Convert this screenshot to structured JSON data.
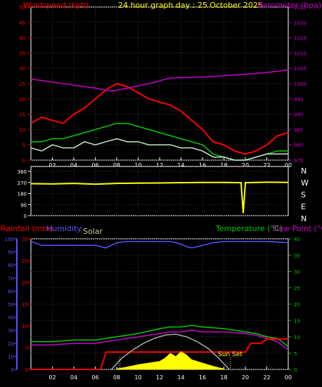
{
  "chart_data": [
    {
      "type": "line",
      "title": "24 hour graph day : 25 October 2025",
      "left_axis_label": "Windspeed (kph)",
      "right_axis_label": "Barometer (hpa)",
      "x_ticks": [
        "02",
        "04",
        "06",
        "08",
        "10",
        "12",
        "14",
        "16",
        "18",
        "20",
        "22",
        "00"
      ],
      "left_ticks": [
        "0",
        "5",
        "10",
        "15",
        "20",
        "25",
        "30",
        "35",
        "40",
        "45",
        "50"
      ],
      "right_ticks": [
        "975",
        "980",
        "985",
        "990",
        "995",
        "1000",
        "1005",
        "1010",
        "1015",
        "1020",
        "1025"
      ],
      "ylim_left": [
        0,
        50
      ],
      "ylim_right": [
        975,
        1025
      ],
      "series": [
        {
          "color": "#ff0000",
          "x": [
            0,
            1,
            2,
            3,
            4,
            5,
            6,
            7,
            8,
            9,
            10,
            11,
            12,
            13,
            14,
            15,
            16,
            17,
            18,
            19,
            20,
            21,
            22,
            23,
            24
          ],
          "values": [
            12,
            14,
            13,
            12,
            15,
            17,
            20,
            23,
            25,
            24,
            22,
            20,
            19,
            18,
            16,
            13,
            10,
            6,
            5,
            3,
            2,
            3,
            5,
            8,
            9
          ]
        },
        {
          "color": "#00cc00",
          "x": [
            0,
            1,
            2,
            3,
            4,
            5,
            6,
            7,
            8,
            9,
            10,
            11,
            12,
            13,
            14,
            15,
            16,
            17,
            18,
            19,
            20,
            21,
            22,
            23,
            24
          ],
          "values": [
            6,
            6,
            7,
            7,
            8,
            9,
            10,
            11,
            12,
            12,
            11,
            10,
            9,
            8,
            7,
            6,
            5,
            2,
            1,
            0,
            0,
            1,
            2,
            3,
            3
          ]
        },
        {
          "color": "#cce8cc",
          "x": [
            0,
            1,
            2,
            3,
            4,
            5,
            6,
            7,
            8,
            9,
            10,
            11,
            12,
            13,
            14,
            15,
            16,
            17,
            18,
            19,
            20,
            21,
            22,
            23,
            24
          ],
          "values": [
            4,
            3,
            5,
            4,
            4,
            6,
            5,
            6,
            7,
            6,
            6,
            5,
            5,
            5,
            4,
            4,
            3,
            1,
            1,
            0,
            0,
            1,
            2,
            2,
            2
          ]
        },
        {
          "color": "#cc00cc",
          "axis": "right",
          "x": [
            0,
            2,
            4,
            6,
            7.5,
            9,
            11,
            13,
            15,
            17,
            19,
            21,
            23,
            24
          ],
          "values": [
            1001.5,
            1000.5,
            999.5,
            998.5,
            997.5,
            998.5,
            1000,
            1001.8,
            1002,
            1002.3,
            1002.8,
            1003.3,
            1004,
            1004.5
          ]
        }
      ]
    },
    {
      "type": "line",
      "left_ticks": [
        "0",
        "90",
        "180",
        "270",
        "360"
      ],
      "right_labels": [
        "N",
        "W",
        "S",
        "E",
        "N"
      ],
      "ylim_left": [
        0,
        360
      ],
      "x_ticks": [
        "02",
        "04",
        "06",
        "08",
        "10",
        "12",
        "14",
        "16",
        "18",
        "20",
        "22",
        "00"
      ],
      "series": [
        {
          "color": "#ffff00",
          "x": [
            0,
            2,
            4,
            6,
            8,
            10,
            12,
            14,
            16,
            18,
            19.6,
            19.8,
            20,
            22,
            24
          ],
          "values": [
            260,
            258,
            262,
            256,
            262,
            264,
            266,
            268,
            270,
            270,
            268,
            20,
            268,
            272,
            270
          ]
        }
      ]
    },
    {
      "type": "line",
      "labels": {
        "rainfall": "Rainfall (mm)",
        "humidity": "Humidity",
        "solar": "Solar",
        "temperature": "Temperature (°C)",
        "dewpoint": "Dew Point (°C)",
        "sunset": "Sun Set"
      },
      "humidity_ticks": [
        "0",
        "10",
        "20",
        "30",
        "40",
        "50",
        "60",
        "70",
        "80",
        "90",
        "100"
      ],
      "rain_ticks": [
        "0",
        "5",
        "10",
        "15",
        "20",
        "25",
        "30"
      ],
      "temp_ticks": [
        "0",
        "5",
        "10",
        "15",
        "20",
        "25",
        "30",
        "35",
        "40"
      ],
      "ylim_humidity": [
        0,
        100
      ],
      "ylim_rain": [
        0,
        30
      ],
      "ylim_temp": [
        0,
        40
      ],
      "x_ticks": [
        "02",
        "04",
        "06",
        "08",
        "10",
        "12",
        "14",
        "16",
        "18",
        "20",
        "22",
        "00"
      ],
      "series": [
        {
          "color": "#5555ff",
          "axis": "humidity",
          "x": [
            0,
            1,
            2,
            4,
            6,
            7,
            8,
            9,
            10,
            12,
            13,
            14,
            14.5,
            15,
            16,
            17,
            18,
            20,
            22,
            24
          ],
          "values": [
            98,
            95,
            95,
            95,
            95,
            93,
            97,
            98,
            98,
            98,
            98,
            96,
            94,
            93,
            95,
            97,
            98,
            98,
            98,
            97
          ]
        },
        {
          "color": "#00cc00",
          "axis": "temp",
          "x": [
            0,
            2,
            4,
            6,
            8,
            10,
            12,
            13,
            14,
            15,
            16,
            18,
            20,
            21,
            22,
            23,
            24
          ],
          "values": [
            8.5,
            8.5,
            9,
            9,
            10,
            11,
            12.5,
            13,
            13,
            13.5,
            13,
            12.5,
            11.5,
            11,
            10,
            9.5,
            7
          ]
        },
        {
          "color": "#cc00cc",
          "axis": "temp",
          "x": [
            0,
            2,
            4,
            6,
            8,
            10,
            12,
            13,
            14,
            15,
            16,
            18,
            20,
            21,
            22,
            23,
            24
          ],
          "values": [
            7.5,
            7.5,
            8,
            8,
            9,
            10,
            11,
            11.5,
            11.5,
            12,
            11.5,
            11.5,
            11,
            10.5,
            9.5,
            8.5,
            6
          ]
        },
        {
          "color": "#ff0000",
          "axis": "rain",
          "x": [
            0,
            6.5,
            7,
            14,
            15,
            16,
            17,
            18,
            19,
            20,
            20.5,
            21,
            21.5,
            22,
            22.5,
            23,
            24
          ],
          "values": [
            0,
            0,
            4,
            4,
            4,
            4,
            4,
            4,
            4,
            4,
            6,
            6,
            6,
            7,
            7,
            7,
            7
          ]
        },
        {
          "color": "#aaaaaa",
          "axis": "temp",
          "x": [
            7.5,
            8.5,
            9.5,
            10.5,
            11.5,
            12.5,
            13.5,
            14.5,
            15.5,
            16.5,
            17.5,
            18.5
          ],
          "values": [
            0,
            3.5,
            6,
            8,
            9.5,
            10.5,
            10.8,
            10,
            8.5,
            6.5,
            3.5,
            0
          ]
        },
        {
          "color": "#ffff00",
          "axis": "solar",
          "x": [
            8,
            9,
            10,
            11,
            12,
            12.5,
            13,
            13.5,
            14,
            14.5,
            15,
            16,
            17,
            18
          ],
          "values": [
            0.2,
            0.8,
            1.5,
            2,
            2.5,
            3.5,
            5,
            4,
            5.5,
            4.5,
            3,
            2,
            1,
            0.2
          ]
        }
      ]
    }
  ]
}
